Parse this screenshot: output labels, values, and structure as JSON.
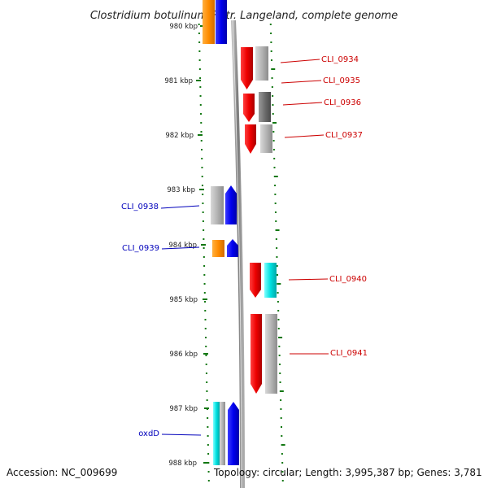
{
  "title": "Clostridium botulinum F str. Langeland, complete genome",
  "footer": {
    "accession": "Accession: NC_009699",
    "topology": "Topology: circular; Length: 3,995,387 bp; Genes: 3,781"
  },
  "scale_labels": [
    "980 kbp",
    "981 kbp",
    "982 kbp",
    "983 kbp",
    "984 kbp",
    "985 kbp",
    "986 kbp",
    "987 kbp",
    "988 kbp"
  ],
  "gene_labels": {
    "right": [
      "CLI_0934",
      "CLI_0935",
      "CLI_0936",
      "CLI_0937",
      "CLI_0940",
      "CLI_0941"
    ],
    "left": [
      "CLI_0938",
      "CLI_0939",
      "oxdD"
    ]
  },
  "colors": {
    "forward_strand_label": "#cc0000",
    "reverse_strand_label": "#0000bb",
    "forward_gene": "#ee0000",
    "reverse_gene": "#0000ee",
    "cog_orange": "#ff8c00",
    "cog_cyan": "#00dddd",
    "cog_gray": "#b0b0b0",
    "cog_darkgray": "#707070",
    "backbone": "#888888",
    "ticks": "#117711"
  }
}
